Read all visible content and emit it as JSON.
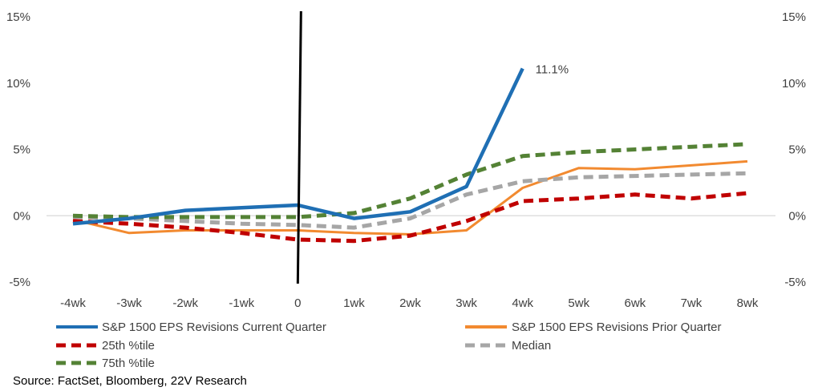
{
  "chart_data": {
    "type": "line",
    "categories": [
      "-4wk",
      "-3wk",
      "-2wk",
      "-1wk",
      "0",
      "1wk",
      "2wk",
      "3wk",
      "4wk",
      "5wk",
      "6wk",
      "7wk",
      "8wk"
    ],
    "y_ticks": [
      "-5%",
      "0%",
      "5%",
      "10%",
      "15%"
    ],
    "ylim": [
      -5,
      15
    ],
    "vertical_marker": "0",
    "series": [
      {
        "name": "S&P 1500  EPS Revisions Current Quarter",
        "color": "#1F6FB4",
        "style": "solid",
        "values": [
          -0.6,
          -0.2,
          0.4,
          0.6,
          0.8,
          -0.2,
          0.3,
          2.2,
          11.1,
          null,
          null,
          null,
          null
        ]
      },
      {
        "name": "S&P 1500 EPS Revisions Prior Quarter",
        "color": "#F28A30",
        "style": "solid",
        "values": [
          -0.3,
          -1.3,
          -1.1,
          -1.1,
          -1.1,
          -1.3,
          -1.4,
          -1.1,
          2.1,
          3.6,
          3.5,
          3.8,
          4.1
        ]
      },
      {
        "name": "25th %tile",
        "color": "#C00000",
        "style": "dashed",
        "values": [
          -0.4,
          -0.6,
          -0.9,
          -1.3,
          -1.8,
          -1.9,
          -1.5,
          -0.4,
          1.1,
          1.3,
          1.6,
          1.3,
          1.7
        ]
      },
      {
        "name": "Median",
        "color": "#A6A6A6",
        "style": "dashed",
        "values": [
          -0.1,
          -0.2,
          -0.4,
          -0.6,
          -0.7,
          -0.9,
          -0.2,
          1.6,
          2.6,
          2.9,
          3.0,
          3.1,
          3.2
        ]
      },
      {
        "name": "75th %tile",
        "color": "#548235",
        "style": "dashed",
        "values": [
          0.0,
          -0.1,
          -0.1,
          -0.1,
          -0.1,
          0.2,
          1.3,
          3.1,
          4.5,
          4.8,
          5.0,
          5.2,
          5.4
        ]
      }
    ],
    "annotation": "11.1%",
    "source": "Source: FactSet, Bloomberg, 22V Research"
  }
}
